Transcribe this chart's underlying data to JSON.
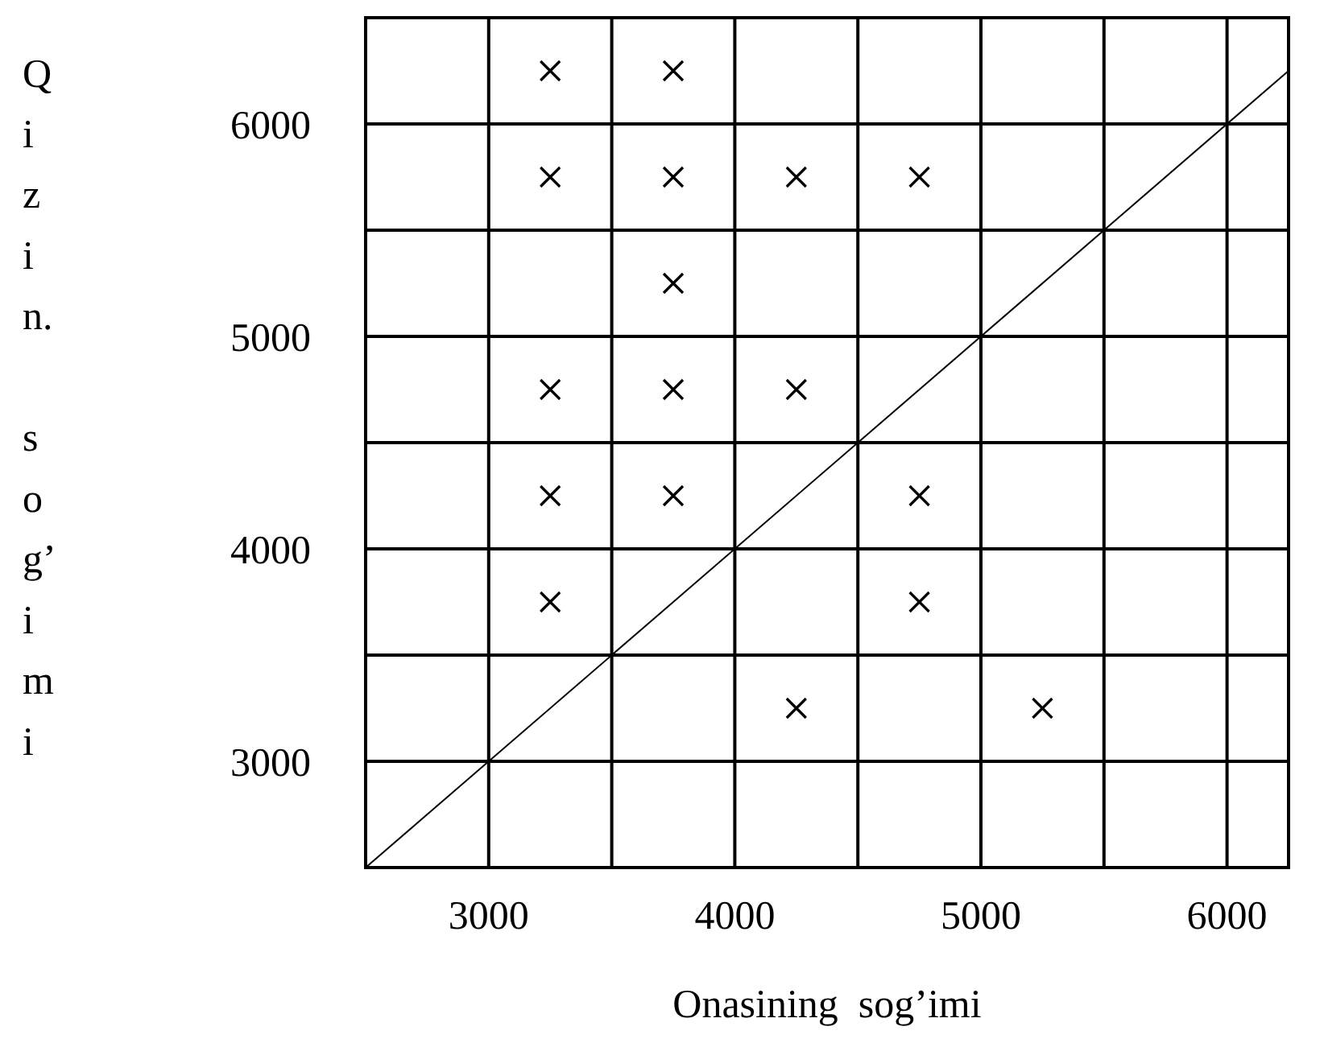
{
  "chart_data": {
    "type": "scatter",
    "xlabel": "Onasining  sog’imi",
    "ylabel": "Qizin. sog’imi",
    "xlim": [
      2500,
      6250
    ],
    "ylim": [
      2500,
      6500
    ],
    "xticks": [
      3000,
      {
        "value": 3500,
        "label": null
      },
      4000,
      {
        "value": 4500,
        "label": null
      },
      5000,
      {
        "value": 5500,
        "label": null
      },
      6000
    ],
    "yticks": [
      3000,
      {
        "value": 3500,
        "label": null
      },
      4000,
      {
        "value": 4500,
        "label": null
      },
      5000,
      {
        "value": 5500,
        "label": null
      },
      6000
    ],
    "grid": true,
    "marker": "cross",
    "series": [
      {
        "color": "#000000",
        "x": [
          3250,
          3750,
          3250,
          3750,
          4250,
          4750,
          3750,
          3250,
          3750,
          4250,
          3250,
          3750,
          4750,
          3250,
          4750,
          4250,
          5250
        ],
        "values": [
          6250,
          6250,
          5750,
          5750,
          5750,
          5750,
          5250,
          4750,
          4750,
          4750,
          4250,
          4250,
          4250,
          3750,
          3750,
          3250,
          3250
        ]
      },
      {
        "type": "line",
        "marker": "none",
        "color": "#000000",
        "x": [
          2500,
          6250
        ],
        "values": [
          2500,
          6250
        ]
      }
    ]
  }
}
